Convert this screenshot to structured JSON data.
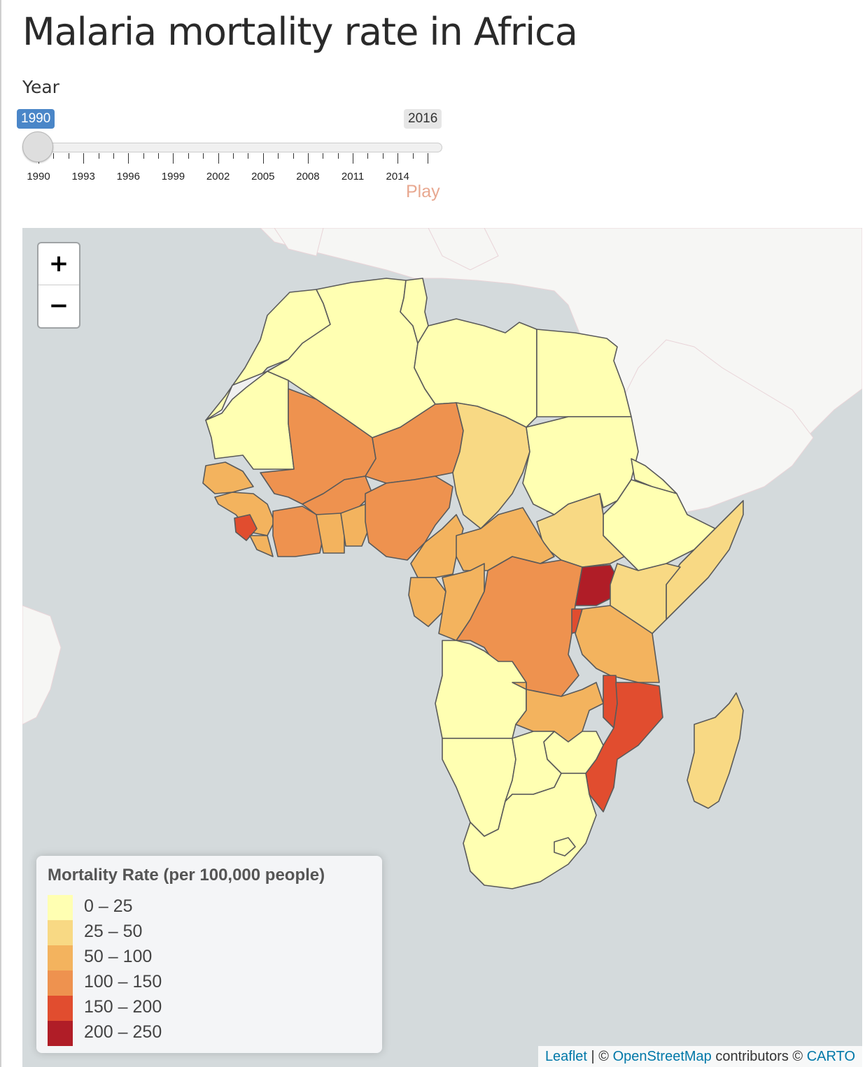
{
  "title": "Malaria mortality rate in Africa",
  "slider": {
    "label": "Year",
    "value": "1990",
    "max_label": "2016",
    "min": 1990,
    "max": 2016,
    "current": 1990,
    "tick_labels": [
      "1990",
      "1993",
      "1996",
      "1999",
      "2002",
      "2005",
      "2008",
      "2011",
      "2014"
    ],
    "play_label": "Play"
  },
  "map": {
    "zoom_in": "+",
    "zoom_out": "−",
    "legend": {
      "title": "Mortality Rate (per 100,000 people)",
      "items": [
        {
          "label": "0 – 25",
          "color": "#ffffb2"
        },
        {
          "label": "25 – 50",
          "color": "#f8d984"
        },
        {
          "label": "50 – 100",
          "color": "#f3b35e"
        },
        {
          "label": "100 – 150",
          "color": "#ee924f"
        },
        {
          "label": "150 – 200",
          "color": "#e14d2f"
        },
        {
          "label": "200 – 250",
          "color": "#b01d27"
        }
      ]
    },
    "attribution": {
      "leaflet": "Leaflet",
      "sep1": " | © ",
      "osm": "OpenStreetMap",
      "mid": " contributors © ",
      "carto": "CARTO"
    }
  },
  "colors": {
    "water": "#d4dadc",
    "land": "#f6f6f4",
    "slider_accent": "#4a86c8",
    "play": "#e8a890"
  }
}
